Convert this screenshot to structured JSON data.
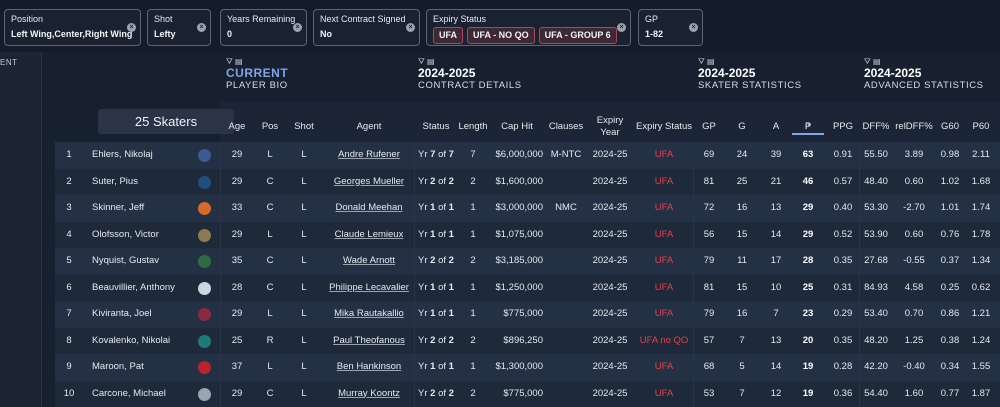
{
  "filters": [
    {
      "label": "Position",
      "value": "Left Wing,Center,Right Wing"
    },
    {
      "label": "Shot",
      "value": "Lefty"
    },
    {
      "label": "Years Remaining",
      "value": "0"
    },
    {
      "label": "Next Contract Signed",
      "value": "No"
    },
    {
      "label": "Expiry Status",
      "chips": [
        "UFA",
        "UFA - NO QO",
        "UFA - GROUP 6"
      ]
    },
    {
      "label": "GP",
      "value": "1-82"
    }
  ],
  "left_panel_text": "ENT",
  "skater_count_label": "25 Skaters",
  "groups": [
    {
      "title": "CURRENT",
      "subtitle": "PLAYER BIO"
    },
    {
      "title": "2024-2025",
      "subtitle": "CONTRACT DETAILS"
    },
    {
      "title": "2024-2025",
      "subtitle": "SKATER STATISTICS"
    },
    {
      "title": "2024-2025",
      "subtitle": "ADVANCED STATISTICS"
    }
  ],
  "columns": [
    "Age",
    "Pos",
    "Shot",
    "Agent",
    "Status",
    "Length",
    "Cap Hit",
    "Clauses",
    "Expiry Year",
    "Expiry Status",
    "GP",
    "G",
    "A",
    "P",
    "PPG",
    "DFF%",
    "relDFF%",
    "G60",
    "P60"
  ],
  "rows": [
    {
      "rank": "1",
      "name": "Ehlers, Nikolaj",
      "age": "29",
      "pos": "L",
      "shot": "L",
      "agent": "Andre Rufener",
      "status_yr": "Yr ",
      "status_cur": "7",
      "status_of": " of ",
      "status_tot": "7",
      "length": "7",
      "cap_hit": "$6,000,000",
      "clauses": "M-NTC",
      "expiry_year": "2024-25",
      "expiry_status": "UFA",
      "gp": "69",
      "g": "24",
      "a": "39",
      "p": "63",
      "ppg": "0.91",
      "dff": "55.50",
      "reldff": "3.89",
      "g60": "0.98",
      "p60": "2.11",
      "logo_color": "#3b5b8f"
    },
    {
      "rank": "2",
      "name": "Suter, Pius",
      "age": "29",
      "pos": "C",
      "shot": "L",
      "agent": "Georges Mueller",
      "status_yr": "Yr ",
      "status_cur": "2",
      "status_of": " of ",
      "status_tot": "2",
      "length": "2",
      "cap_hit": "$1,600,000",
      "clauses": "",
      "expiry_year": "2024-25",
      "expiry_status": "UFA",
      "gp": "81",
      "g": "25",
      "a": "21",
      "p": "46",
      "ppg": "0.57",
      "dff": "48.40",
      "reldff": "0.60",
      "g60": "1.02",
      "p60": "1.68",
      "logo_color": "#1f4f7a"
    },
    {
      "rank": "3",
      "name": "Skinner, Jeff",
      "age": "33",
      "pos": "C",
      "shot": "L",
      "agent": "Donald Meehan",
      "status_yr": "Yr ",
      "status_cur": "1",
      "status_of": " of ",
      "status_tot": "1",
      "length": "1",
      "cap_hit": "$3,000,000",
      "clauses": "NMC",
      "expiry_year": "2024-25",
      "expiry_status": "UFA",
      "gp": "72",
      "g": "16",
      "a": "13",
      "p": "29",
      "ppg": "0.40",
      "dff": "53.30",
      "reldff": "-2.70",
      "g60": "1.01",
      "p60": "1.74",
      "logo_color": "#d9692a"
    },
    {
      "rank": "4",
      "name": "Olofsson, Victor",
      "age": "29",
      "pos": "L",
      "shot": "L",
      "agent": "Claude Lemieux",
      "status_yr": "Yr ",
      "status_cur": "1",
      "status_of": " of ",
      "status_tot": "1",
      "length": "1",
      "cap_hit": "$1,075,000",
      "clauses": "",
      "expiry_year": "2024-25",
      "expiry_status": "UFA",
      "gp": "56",
      "g": "15",
      "a": "14",
      "p": "29",
      "ppg": "0.52",
      "dff": "53.90",
      "reldff": "0.60",
      "g60": "0.76",
      "p60": "1.78",
      "logo_color": "#8c7b50"
    },
    {
      "rank": "5",
      "name": "Nyquist, Gustav",
      "age": "35",
      "pos": "C",
      "shot": "L",
      "agent": "Wade Arnott",
      "status_yr": "Yr ",
      "status_cur": "2",
      "status_of": " of ",
      "status_tot": "2",
      "length": "2",
      "cap_hit": "$3,185,000",
      "clauses": "",
      "expiry_year": "2024-25",
      "expiry_status": "UFA",
      "gp": "79",
      "g": "11",
      "a": "17",
      "p": "28",
      "ppg": "0.35",
      "dff": "27.68",
      "reldff": "-0.55",
      "g60": "0.37",
      "p60": "1.34",
      "logo_color": "#2f6b45"
    },
    {
      "rank": "6",
      "name": "Beauvillier, Anthony",
      "age": "28",
      "pos": "C",
      "shot": "L",
      "agent": "Philippe Lecavalier",
      "status_yr": "Yr ",
      "status_cur": "1",
      "status_of": " of ",
      "status_tot": "1",
      "length": "1",
      "cap_hit": "$1,250,000",
      "clauses": "",
      "expiry_year": "2024-25",
      "expiry_status": "UFA",
      "gp": "81",
      "g": "15",
      "a": "10",
      "p": "25",
      "ppg": "0.31",
      "dff": "84.93",
      "reldff": "4.58",
      "g60": "0.25",
      "p60": "0.62",
      "logo_color": "#cfd6e0"
    },
    {
      "rank": "7",
      "name": "Kiviranta, Joel",
      "age": "29",
      "pos": "L",
      "shot": "L",
      "agent": "Mika Rautakallio",
      "status_yr": "Yr ",
      "status_cur": "1",
      "status_of": " of ",
      "status_tot": "1",
      "length": "1",
      "cap_hit": "$775,000",
      "clauses": "",
      "expiry_year": "2024-25",
      "expiry_status": "UFA",
      "gp": "79",
      "g": "16",
      "a": "7",
      "p": "23",
      "ppg": "0.29",
      "dff": "53.40",
      "reldff": "0.70",
      "g60": "0.86",
      "p60": "1.21",
      "logo_color": "#8a2a3e"
    },
    {
      "rank": "8",
      "name": "Kovalenko, Nikolai",
      "age": "25",
      "pos": "R",
      "shot": "L",
      "agent": "Paul Theofanous",
      "status_yr": "Yr ",
      "status_cur": "2",
      "status_of": " of ",
      "status_tot": "2",
      "length": "2",
      "cap_hit": "$896,250",
      "clauses": "",
      "expiry_year": "2024-25",
      "expiry_status": "UFA no QO",
      "gp": "57",
      "g": "7",
      "a": "13",
      "p": "20",
      "ppg": "0.35",
      "dff": "48.20",
      "reldff": "1.25",
      "g60": "0.38",
      "p60": "1.24",
      "logo_color": "#1f7a7a"
    },
    {
      "rank": "9",
      "name": "Maroon, Pat",
      "age": "37",
      "pos": "L",
      "shot": "L",
      "agent": "Ben Hankinson",
      "status_yr": "Yr ",
      "status_cur": "1",
      "status_of": " of ",
      "status_tot": "1",
      "length": "1",
      "cap_hit": "$1,300,000",
      "clauses": "",
      "expiry_year": "2024-25",
      "expiry_status": "UFA",
      "gp": "68",
      "g": "5",
      "a": "14",
      "p": "19",
      "ppg": "0.28",
      "dff": "42.20",
      "reldff": "-0.40",
      "g60": "0.34",
      "p60": "1.55",
      "logo_color": "#b8232f"
    },
    {
      "rank": "10",
      "name": "Carcone, Michael",
      "age": "29",
      "pos": "C",
      "shot": "L",
      "agent": "Murray Koontz",
      "status_yr": "Yr ",
      "status_cur": "2",
      "status_of": " of ",
      "status_tot": "2",
      "length": "2",
      "cap_hit": "$775,000",
      "clauses": "",
      "expiry_year": "2024-25",
      "expiry_status": "UFA",
      "gp": "53",
      "g": "7",
      "a": "12",
      "p": "19",
      "ppg": "0.36",
      "dff": "54.40",
      "reldff": "1.60",
      "g60": "0.77",
      "p60": "1.87",
      "logo_color": "#9aa3b1"
    }
  ],
  "colors": {
    "accent": "#7ea6e6",
    "ufa": "#e0434e",
    "chip_border": "#a8485d",
    "background": "#17202f"
  },
  "icons": {
    "filter": "filter-icon",
    "columns": "columns-icon",
    "clear": "clear-icon",
    "sort": "sort-desc-icon"
  }
}
